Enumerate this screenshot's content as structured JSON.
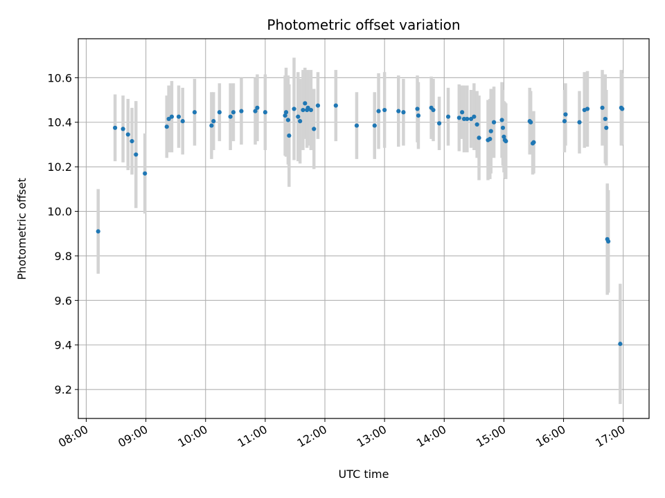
{
  "chart_data": {
    "type": "scatter",
    "title": "Photometric offset variation",
    "xlabel": "UTC time",
    "ylabel": "Photometric offset",
    "x_unit": "UTC hours",
    "xlim": [
      "07:52",
      "17:26"
    ],
    "ylim": [
      9.07,
      10.775
    ],
    "grid": true,
    "xticks": [
      "08:00",
      "09:00",
      "10:00",
      "11:00",
      "12:00",
      "13:00",
      "14:00",
      "15:00",
      "16:00",
      "17:00"
    ],
    "yticks": [
      "9.2",
      "9.4",
      "9.6",
      "9.8",
      "10.0",
      "10.2",
      "10.4",
      "10.6"
    ],
    "colors": {
      "points": "#1f77b4",
      "errorbars": "#d3d3d3",
      "grid": "#b0b0b0"
    },
    "series": [
      {
        "x": [
          "08:12",
          "08:29",
          "08:37",
          "08:42",
          "08:46",
          "08:50",
          "08:59",
          "09:21",
          "09:23",
          "09:26",
          "09:33",
          "09:37",
          "09:49",
          "10:06",
          "10:08",
          "10:14",
          "10:25",
          "10:28",
          "10:36",
          "10:50",
          "10:52",
          "11:00",
          "11:20",
          "11:21",
          "11:23",
          "11:24",
          "11:29",
          "11:33",
          "11:35",
          "11:38",
          "11:40",
          "11:42",
          "11:43",
          "11:46",
          "11:49",
          "11:53",
          "12:11",
          "12:32",
          "12:50",
          "12:54",
          "13:00",
          "13:14",
          "13:19",
          "13:33",
          "13:34",
          "13:47",
          "13:49",
          "13:55",
          "14:04",
          "14:15",
          "14:18",
          "14:20",
          "14:23",
          "14:27",
          "14:30",
          "14:33",
          "14:35",
          "14:44",
          "14:46",
          "14:47",
          "14:50",
          "14:58",
          "14:59",
          "15:00",
          "15:01",
          "15:02",
          "15:26",
          "15:27",
          "15:29",
          "15:30",
          "16:01",
          "16:02",
          "16:16",
          "16:21",
          "16:24",
          "16:39",
          "16:42",
          "16:43",
          "16:44",
          "16:45",
          "16:57",
          "16:58",
          "16:59"
        ],
        "y": [
          9.91,
          10.375,
          10.37,
          10.345,
          10.315,
          10.255,
          10.17,
          10.38,
          10.415,
          10.425,
          10.425,
          10.405,
          10.445,
          10.385,
          10.405,
          10.445,
          10.425,
          10.445,
          10.45,
          10.45,
          10.465,
          10.445,
          10.43,
          10.445,
          10.41,
          10.34,
          10.46,
          10.425,
          10.405,
          10.455,
          10.485,
          10.455,
          10.465,
          10.455,
          10.37,
          10.475,
          10.475,
          10.385,
          10.385,
          10.45,
          10.455,
          10.45,
          10.445,
          10.46,
          10.43,
          10.465,
          10.455,
          10.395,
          10.425,
          10.42,
          10.445,
          10.415,
          10.415,
          10.415,
          10.425,
          10.39,
          10.33,
          10.32,
          10.325,
          10.36,
          10.4,
          10.41,
          10.375,
          10.335,
          10.32,
          10.315,
          10.405,
          10.4,
          10.305,
          10.31,
          10.405,
          10.435,
          10.4,
          10.455,
          10.46,
          10.465,
          10.415,
          10.375,
          9.875,
          9.865,
          9.405,
          10.465,
          10.46
        ],
        "yerr": [
          0.19,
          0.15,
          0.15,
          0.16,
          0.15,
          0.24,
          0.18,
          0.14,
          0.15,
          0.16,
          0.14,
          0.15,
          0.15,
          0.15,
          0.13,
          0.13,
          0.15,
          0.13,
          0.15,
          0.15,
          0.15,
          0.17,
          0.18,
          0.2,
          0.2,
          0.23,
          0.23,
          0.2,
          0.19,
          0.18,
          0.16,
          0.17,
          0.17,
          0.18,
          0.18,
          0.15,
          0.16,
          0.15,
          0.15,
          0.17,
          0.17,
          0.16,
          0.15,
          0.15,
          0.15,
          0.14,
          0.14,
          0.12,
          0.13,
          0.15,
          0.12,
          0.15,
          0.15,
          0.13,
          0.15,
          0.15,
          0.19,
          0.18,
          0.18,
          0.19,
          0.16,
          0.17,
          0.17,
          0.16,
          0.17,
          0.17,
          0.15,
          0.14,
          0.14,
          0.14,
          0.14,
          0.14,
          0.14,
          0.17,
          0.17,
          0.17,
          0.2,
          0.17,
          0.25,
          0.23,
          0.27,
          0.17,
          0.16
        ]
      }
    ]
  }
}
